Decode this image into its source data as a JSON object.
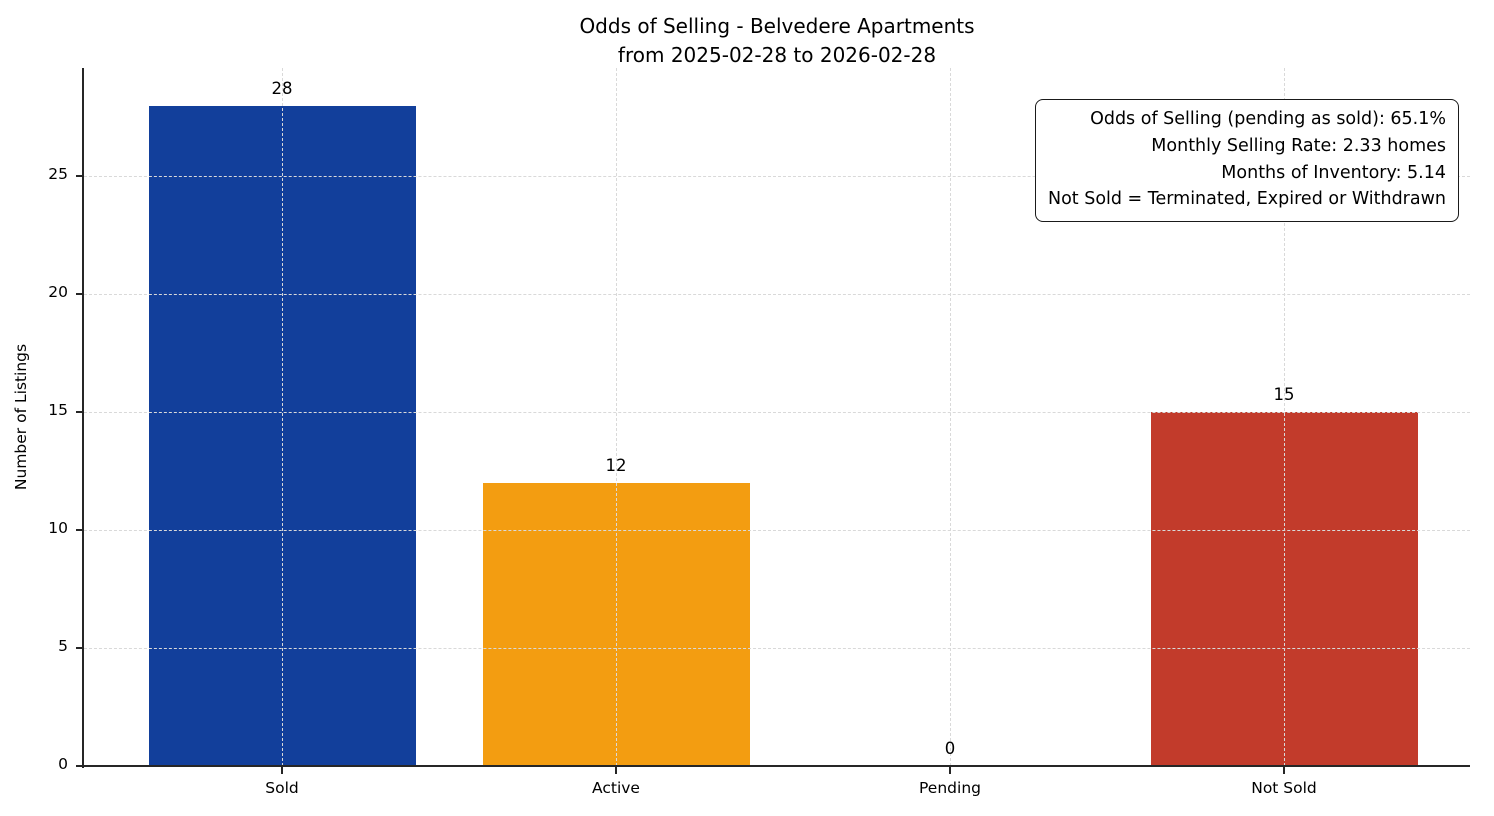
{
  "page": {
    "background_color": "#ffffff",
    "text_color": "#000000",
    "axis_color": "#262626",
    "grid_color": "#d9d9d9"
  },
  "chart_data": {
    "type": "bar",
    "title": "Odds of Selling - Belvedere Apartments",
    "subtitle": "from 2025-02-28 to 2026-02-28",
    "xlabel": "",
    "ylabel": "Number of Listings",
    "categories": [
      "Sold",
      "Active",
      "Pending",
      "Not Sold"
    ],
    "values": [
      28,
      12,
      0,
      15
    ],
    "value_labels": [
      "28",
      "12",
      "0",
      "15"
    ],
    "bar_colors": [
      "#123f9b",
      "#f39d11",
      "#999999",
      "#c23b2b"
    ],
    "yticks": [
      0,
      5,
      10,
      15,
      20,
      25
    ],
    "ylim": [
      0,
      29.6
    ],
    "grid": "dashed-both-axes",
    "legend": "none",
    "annotation": {
      "lines": [
        "Odds of Selling (pending as sold): 65.1%",
        "Monthly Selling Rate: 2.33 homes",
        "Months of Inventory: 5.14",
        "Not Sold = Terminated, Expired or Withdrawn"
      ],
      "position": "top-right"
    }
  }
}
